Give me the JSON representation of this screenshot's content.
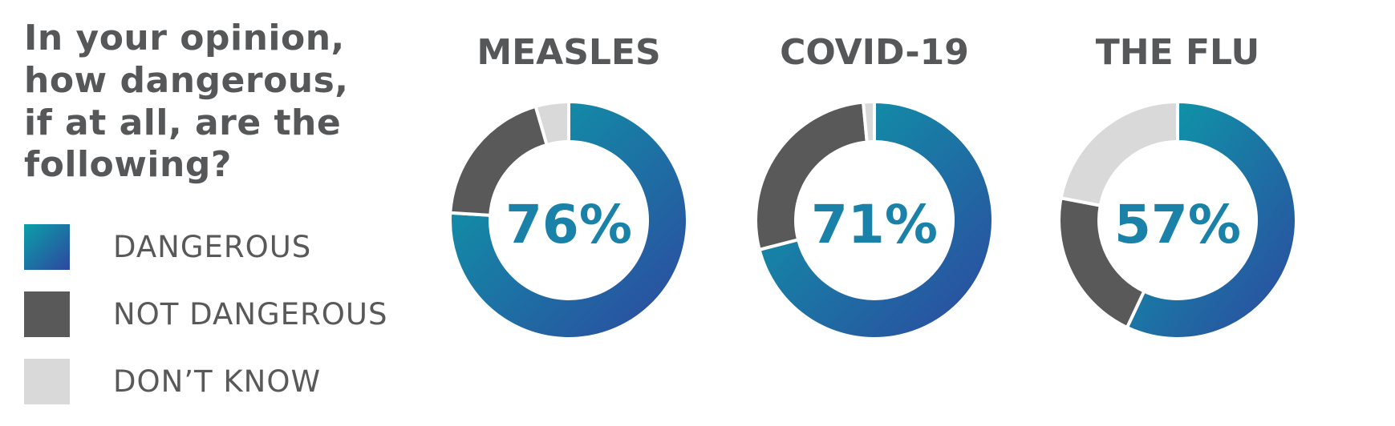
{
  "question": [
    "In your opinion,",
    "how dangerous,",
    "if at all, are the",
    "following?"
  ],
  "legend": [
    {
      "label": "DANGEROUS",
      "color": "gradient"
    },
    {
      "label": "NOT DANGEROUS",
      "color": "#595959"
    },
    {
      "label": "DON’T KNOW",
      "color": "#d9d9d9"
    }
  ],
  "colors": {
    "dangerous_start": "#0aa0a8",
    "dangerous_end": "#2e47a0",
    "not_dangerous": "#595959",
    "dont_know": "#d9d9d9",
    "title_text": "#555759",
    "center_text": "#1a82a8"
  },
  "chart_data": [
    {
      "type": "pie",
      "title": "MEASLES",
      "center_label": "76%",
      "categories": [
        "DANGEROUS",
        "NOT DANGEROUS",
        "DON’T KNOW"
      ],
      "values": [
        76,
        19.5,
        4.5
      ]
    },
    {
      "type": "pie",
      "title": "COVID-19",
      "center_label": "71%",
      "categories": [
        "DANGEROUS",
        "NOT DANGEROUS",
        "DON’T KNOW"
      ],
      "values": [
        71,
        27.5,
        1.5
      ]
    },
    {
      "type": "pie",
      "title": "THE FLU",
      "center_label": "57%",
      "categories": [
        "DANGEROUS",
        "NOT DANGEROUS",
        "DON’T KNOW"
      ],
      "values": [
        57,
        21,
        22
      ]
    }
  ]
}
